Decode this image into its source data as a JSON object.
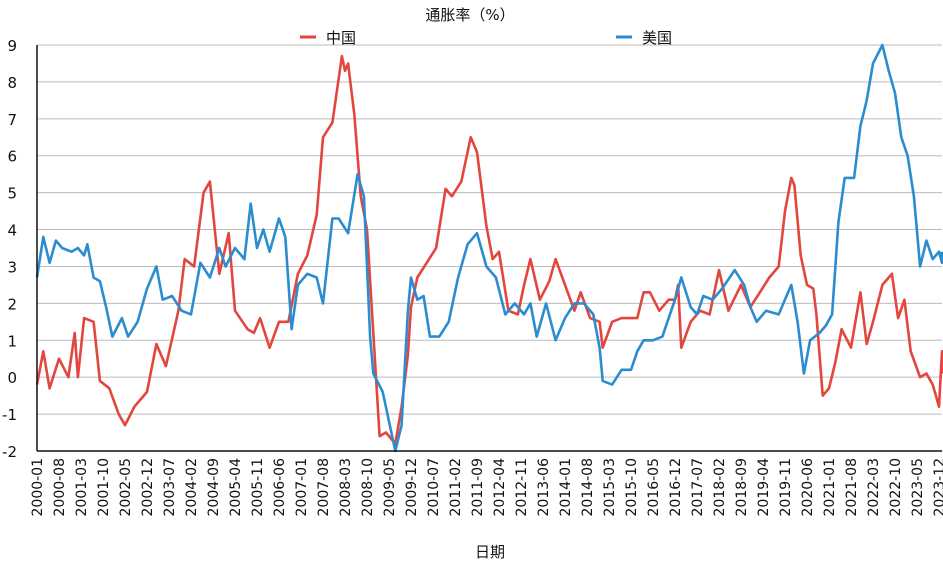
{
  "chart_data": {
    "type": "line",
    "title": "通胀率（%）",
    "xlabel": "日期",
    "ylabel": "",
    "ylim": [
      -2,
      9
    ],
    "yticks": [
      -2,
      -1,
      0,
      1,
      2,
      3,
      4,
      5,
      6,
      7,
      8,
      9
    ],
    "grid": true,
    "legend_placement": "top",
    "xtick_labels": [
      "2000-01",
      "2000-08",
      "2001-03",
      "2001-10",
      "2002-05",
      "2002-12",
      "2003-07",
      "2004-02",
      "2004-09",
      "2005-04",
      "2005-11",
      "2006-06",
      "2007-01",
      "2007-08",
      "2008-03",
      "2008-10",
      "2009-05",
      "2009-12",
      "2010-07",
      "2011-02",
      "2011-09",
      "2012-04",
      "2012-11",
      "2013-06",
      "2014-01",
      "2014-08",
      "2015-03",
      "2015-10",
      "2016-05",
      "2016-12",
      "2017-07",
      "2018-02",
      "2018-09",
      "2019-04",
      "2019-11",
      "2020-06",
      "2021-01",
      "2021-08",
      "2022-03",
      "2022-10",
      "2023-05",
      "2023-12"
    ],
    "series": [
      {
        "name": "中国",
        "color": "#e2463d",
        "points": [
          [
            "2000-01",
            -0.2
          ],
          [
            "2000-03",
            0.7
          ],
          [
            "2000-05",
            -0.3
          ],
          [
            "2000-08",
            0.5
          ],
          [
            "2000-11",
            0.0
          ],
          [
            "2001-01",
            1.2
          ],
          [
            "2001-02",
            0.0
          ],
          [
            "2001-04",
            1.6
          ],
          [
            "2001-07",
            1.5
          ],
          [
            "2001-09",
            -0.1
          ],
          [
            "2001-12",
            -0.3
          ],
          [
            "2002-03",
            -1.0
          ],
          [
            "2002-05",
            -1.3
          ],
          [
            "2002-08",
            -0.8
          ],
          [
            "2002-12",
            -0.4
          ],
          [
            "2003-03",
            0.9
          ],
          [
            "2003-06",
            0.3
          ],
          [
            "2003-10",
            1.8
          ],
          [
            "2003-12",
            3.2
          ],
          [
            "2004-03",
            3.0
          ],
          [
            "2004-06",
            5.0
          ],
          [
            "2004-08",
            5.3
          ],
          [
            "2004-11",
            2.8
          ],
          [
            "2005-02",
            3.9
          ],
          [
            "2005-04",
            1.8
          ],
          [
            "2005-08",
            1.3
          ],
          [
            "2005-10",
            1.2
          ],
          [
            "2005-12",
            1.6
          ],
          [
            "2006-03",
            0.8
          ],
          [
            "2006-06",
            1.5
          ],
          [
            "2006-09",
            1.5
          ],
          [
            "2006-12",
            2.8
          ],
          [
            "2007-03",
            3.3
          ],
          [
            "2007-06",
            4.4
          ],
          [
            "2007-08",
            6.5
          ],
          [
            "2007-11",
            6.9
          ],
          [
            "2008-02",
            8.7
          ],
          [
            "2008-03",
            8.3
          ],
          [
            "2008-04",
            8.5
          ],
          [
            "2008-06",
            7.1
          ],
          [
            "2008-08",
            4.9
          ],
          [
            "2008-10",
            4.0
          ],
          [
            "2008-12",
            1.2
          ],
          [
            "2009-02",
            -1.6
          ],
          [
            "2009-04",
            -1.5
          ],
          [
            "2009-07",
            -1.8
          ],
          [
            "2009-09",
            -0.8
          ],
          [
            "2009-11",
            0.6
          ],
          [
            "2009-12",
            1.9
          ],
          [
            "2010-02",
            2.7
          ],
          [
            "2010-05",
            3.1
          ],
          [
            "2010-08",
            3.5
          ],
          [
            "2010-11",
            5.1
          ],
          [
            "2011-01",
            4.9
          ],
          [
            "2011-04",
            5.3
          ],
          [
            "2011-07",
            6.5
          ],
          [
            "2011-09",
            6.1
          ],
          [
            "2011-12",
            4.1
          ],
          [
            "2012-02",
            3.2
          ],
          [
            "2012-04",
            3.4
          ],
          [
            "2012-07",
            1.8
          ],
          [
            "2012-10",
            1.7
          ],
          [
            "2012-12",
            2.5
          ],
          [
            "2013-02",
            3.2
          ],
          [
            "2013-05",
            2.1
          ],
          [
            "2013-08",
            2.6
          ],
          [
            "2013-10",
            3.2
          ],
          [
            "2014-01",
            2.5
          ],
          [
            "2014-04",
            1.8
          ],
          [
            "2014-06",
            2.3
          ],
          [
            "2014-09",
            1.6
          ],
          [
            "2014-12",
            1.5
          ],
          [
            "2015-01",
            0.8
          ],
          [
            "2015-04",
            1.5
          ],
          [
            "2015-07",
            1.6
          ],
          [
            "2015-09",
            1.6
          ],
          [
            "2015-12",
            1.6
          ],
          [
            "2016-02",
            2.3
          ],
          [
            "2016-04",
            2.3
          ],
          [
            "2016-07",
            1.8
          ],
          [
            "2016-10",
            2.1
          ],
          [
            "2016-12",
            2.1
          ],
          [
            "2017-01",
            2.5
          ],
          [
            "2017-02",
            0.8
          ],
          [
            "2017-05",
            1.5
          ],
          [
            "2017-08",
            1.8
          ],
          [
            "2017-11",
            1.7
          ],
          [
            "2018-02",
            2.9
          ],
          [
            "2018-05",
            1.8
          ],
          [
            "2018-09",
            2.5
          ],
          [
            "2018-12",
            1.9
          ],
          [
            "2019-03",
            2.3
          ],
          [
            "2019-06",
            2.7
          ],
          [
            "2019-09",
            3.0
          ],
          [
            "2019-11",
            4.5
          ],
          [
            "2020-01",
            5.4
          ],
          [
            "2020-02",
            5.2
          ],
          [
            "2020-04",
            3.3
          ],
          [
            "2020-06",
            2.5
          ],
          [
            "2020-08",
            2.4
          ],
          [
            "2020-09",
            1.7
          ],
          [
            "2020-11",
            -0.5
          ],
          [
            "2021-01",
            -0.3
          ],
          [
            "2021-03",
            0.4
          ],
          [
            "2021-05",
            1.3
          ],
          [
            "2021-08",
            0.8
          ],
          [
            "2021-11",
            2.3
          ],
          [
            "2022-01",
            0.9
          ],
          [
            "2022-03",
            1.5
          ],
          [
            "2022-06",
            2.5
          ],
          [
            "2022-09",
            2.8
          ],
          [
            "2022-11",
            1.6
          ],
          [
            "2023-01",
            2.1
          ],
          [
            "2023-03",
            0.7
          ],
          [
            "2023-06",
            0.0
          ],
          [
            "2023-08",
            0.1
          ],
          [
            "2023-10",
            -0.2
          ],
          [
            "2023-11",
            -0.5
          ],
          [
            "2023-12",
            -0.8
          ],
          [
            "2024-01",
            0.7
          ],
          [
            "2024-02",
            0.1
          ]
        ]
      },
      {
        "name": "美国",
        "color": "#2b8cd0",
        "points": [
          [
            "2000-01",
            2.7
          ],
          [
            "2000-03",
            3.8
          ],
          [
            "2000-05",
            3.1
          ],
          [
            "2000-07",
            3.7
          ],
          [
            "2000-09",
            3.5
          ],
          [
            "2000-12",
            3.4
          ],
          [
            "2001-02",
            3.5
          ],
          [
            "2001-04",
            3.3
          ],
          [
            "2001-05",
            3.6
          ],
          [
            "2001-07",
            2.7
          ],
          [
            "2001-09",
            2.6
          ],
          [
            "2001-11",
            1.9
          ],
          [
            "2002-01",
            1.1
          ],
          [
            "2002-04",
            1.6
          ],
          [
            "2002-06",
            1.1
          ],
          [
            "2002-09",
            1.5
          ],
          [
            "2002-12",
            2.4
          ],
          [
            "2003-03",
            3.0
          ],
          [
            "2003-05",
            2.1
          ],
          [
            "2003-08",
            2.2
          ],
          [
            "2003-11",
            1.8
          ],
          [
            "2004-02",
            1.7
          ],
          [
            "2004-05",
            3.1
          ],
          [
            "2004-08",
            2.7
          ],
          [
            "2004-11",
            3.5
          ],
          [
            "2005-01",
            3.0
          ],
          [
            "2005-04",
            3.5
          ],
          [
            "2005-07",
            3.2
          ],
          [
            "2005-09",
            4.7
          ],
          [
            "2005-11",
            3.5
          ],
          [
            "2006-01",
            4.0
          ],
          [
            "2006-03",
            3.4
          ],
          [
            "2006-06",
            4.3
          ],
          [
            "2006-08",
            3.8
          ],
          [
            "2006-10",
            1.3
          ],
          [
            "2006-12",
            2.5
          ],
          [
            "2007-03",
            2.8
          ],
          [
            "2007-06",
            2.7
          ],
          [
            "2007-08",
            2.0
          ],
          [
            "2007-11",
            4.3
          ],
          [
            "2008-01",
            4.3
          ],
          [
            "2008-04",
            3.9
          ],
          [
            "2008-07",
            5.5
          ],
          [
            "2008-09",
            4.9
          ],
          [
            "2008-11",
            1.1
          ],
          [
            "2008-12",
            0.1
          ],
          [
            "2009-03",
            -0.4
          ],
          [
            "2009-07",
            -2.0
          ],
          [
            "2009-09",
            -1.3
          ],
          [
            "2009-11",
            1.8
          ],
          [
            "2009-12",
            2.7
          ],
          [
            "2010-02",
            2.1
          ],
          [
            "2010-04",
            2.2
          ],
          [
            "2010-06",
            1.1
          ],
          [
            "2010-09",
            1.1
          ],
          [
            "2010-12",
            1.5
          ],
          [
            "2011-03",
            2.7
          ],
          [
            "2011-06",
            3.6
          ],
          [
            "2011-09",
            3.9
          ],
          [
            "2011-12",
            3.0
          ],
          [
            "2012-03",
            2.7
          ],
          [
            "2012-06",
            1.7
          ],
          [
            "2012-09",
            2.0
          ],
          [
            "2012-12",
            1.7
          ],
          [
            "2013-02",
            2.0
          ],
          [
            "2013-04",
            1.1
          ],
          [
            "2013-07",
            2.0
          ],
          [
            "2013-10",
            1.0
          ],
          [
            "2014-01",
            1.6
          ],
          [
            "2014-04",
            2.0
          ],
          [
            "2014-07",
            2.0
          ],
          [
            "2014-10",
            1.7
          ],
          [
            "2014-12",
            0.8
          ],
          [
            "2015-01",
            -0.1
          ],
          [
            "2015-04",
            -0.2
          ],
          [
            "2015-07",
            0.2
          ],
          [
            "2015-10",
            0.2
          ],
          [
            "2015-12",
            0.7
          ],
          [
            "2016-02",
            1.0
          ],
          [
            "2016-05",
            1.0
          ],
          [
            "2016-08",
            1.1
          ],
          [
            "2016-10",
            1.6
          ],
          [
            "2016-12",
            2.1
          ],
          [
            "2017-02",
            2.7
          ],
          [
            "2017-05",
            1.9
          ],
          [
            "2017-07",
            1.7
          ],
          [
            "2017-09",
            2.2
          ],
          [
            "2017-12",
            2.1
          ],
          [
            "2018-03",
            2.4
          ],
          [
            "2018-07",
            2.9
          ],
          [
            "2018-10",
            2.5
          ],
          [
            "2018-12",
            1.9
          ],
          [
            "2019-02",
            1.5
          ],
          [
            "2019-05",
            1.8
          ],
          [
            "2019-09",
            1.7
          ],
          [
            "2019-12",
            2.3
          ],
          [
            "2020-01",
            2.5
          ],
          [
            "2020-03",
            1.5
          ],
          [
            "2020-05",
            0.1
          ],
          [
            "2020-07",
            1.0
          ],
          [
            "2020-10",
            1.2
          ],
          [
            "2020-12",
            1.4
          ],
          [
            "2021-02",
            1.7
          ],
          [
            "2021-04",
            4.2
          ],
          [
            "2021-06",
            5.4
          ],
          [
            "2021-09",
            5.4
          ],
          [
            "2021-11",
            6.8
          ],
          [
            "2022-01",
            7.5
          ],
          [
            "2022-03",
            8.5
          ],
          [
            "2022-06",
            9.0
          ],
          [
            "2022-08",
            8.3
          ],
          [
            "2022-10",
            7.7
          ],
          [
            "2022-12",
            6.5
          ],
          [
            "2023-02",
            6.0
          ],
          [
            "2023-04",
            4.9
          ],
          [
            "2023-06",
            3.0
          ],
          [
            "2023-08",
            3.7
          ],
          [
            "2023-10",
            3.2
          ],
          [
            "2023-12",
            3.4
          ],
          [
            "2024-01",
            3.1
          ],
          [
            "2024-02",
            3.4
          ]
        ]
      }
    ]
  }
}
